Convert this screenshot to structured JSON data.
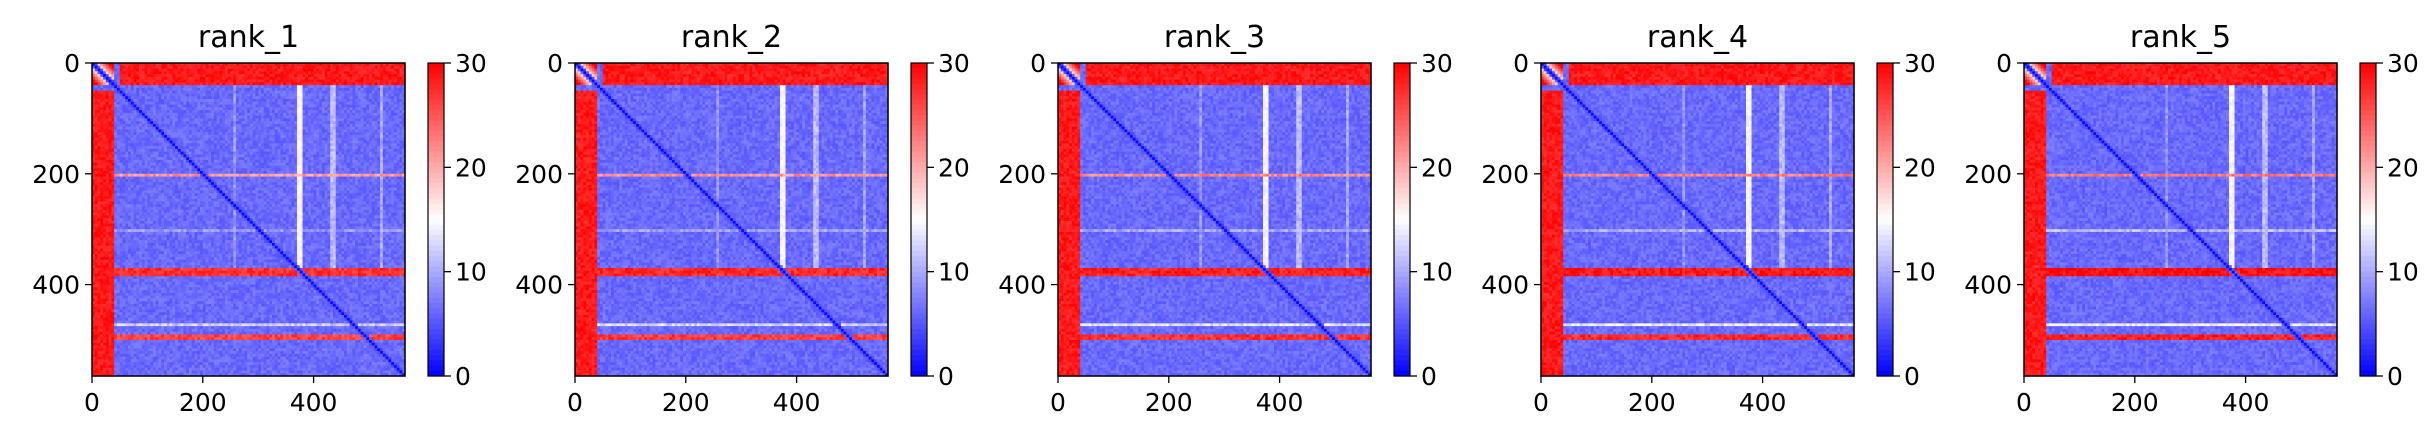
{
  "figure": {
    "panel_count": 5
  },
  "chart_data": [
    {
      "type": "heatmap",
      "title": "rank_1",
      "variant": 1,
      "x_ticks": [
        0,
        200,
        400
      ],
      "y_ticks": [
        0,
        200,
        400
      ],
      "xlim": [
        0,
        565
      ],
      "ylim": [
        565,
        0
      ],
      "colorbar": {
        "range": [
          0,
          30
        ],
        "ticks": [
          0,
          10,
          20,
          30
        ],
        "colormap": "bwr"
      },
      "colors": {
        "low": "#0000ff",
        "mid": "#ffffff",
        "high": "#ff0000"
      }
    },
    {
      "type": "heatmap",
      "title": "rank_2",
      "variant": 2,
      "x_ticks": [
        0,
        200,
        400
      ],
      "y_ticks": [
        0,
        200,
        400
      ],
      "xlim": [
        0,
        565
      ],
      "ylim": [
        565,
        0
      ],
      "colorbar": {
        "range": [
          0,
          30
        ],
        "ticks": [
          0,
          10,
          20,
          30
        ],
        "colormap": "bwr"
      },
      "colors": {
        "low": "#0000ff",
        "mid": "#ffffff",
        "high": "#ff0000"
      }
    },
    {
      "type": "heatmap",
      "title": "rank_3",
      "variant": 3,
      "x_ticks": [
        0,
        200,
        400
      ],
      "y_ticks": [
        0,
        200,
        400
      ],
      "xlim": [
        0,
        565
      ],
      "ylim": [
        565,
        0
      ],
      "colorbar": {
        "range": [
          0,
          30
        ],
        "ticks": [
          0,
          10,
          20,
          30
        ],
        "colormap": "bwr"
      },
      "colors": {
        "low": "#0000ff",
        "mid": "#ffffff",
        "high": "#ff0000"
      }
    },
    {
      "type": "heatmap",
      "title": "rank_4",
      "variant": 4,
      "x_ticks": [
        0,
        200,
        400
      ],
      "y_ticks": [
        0,
        200,
        400
      ],
      "xlim": [
        0,
        565
      ],
      "ylim": [
        565,
        0
      ],
      "colorbar": {
        "range": [
          0,
          30
        ],
        "ticks": [
          0,
          10,
          20,
          30
        ],
        "colormap": "bwr"
      },
      "colors": {
        "low": "#0000ff",
        "mid": "#ffffff",
        "high": "#ff0000"
      }
    },
    {
      "type": "heatmap",
      "title": "rank_5",
      "variant": 5,
      "x_ticks": [
        0,
        200,
        400
      ],
      "y_ticks": [
        0,
        200,
        400
      ],
      "xlim": [
        0,
        565
      ],
      "ylim": [
        565,
        0
      ],
      "colorbar": {
        "range": [
          0,
          30
        ],
        "ticks": [
          0,
          10,
          20,
          30
        ],
        "colormap": "bwr"
      },
      "colors": {
        "low": "#0000ff",
        "mid": "#ffffff",
        "high": "#ff0000"
      }
    }
  ]
}
